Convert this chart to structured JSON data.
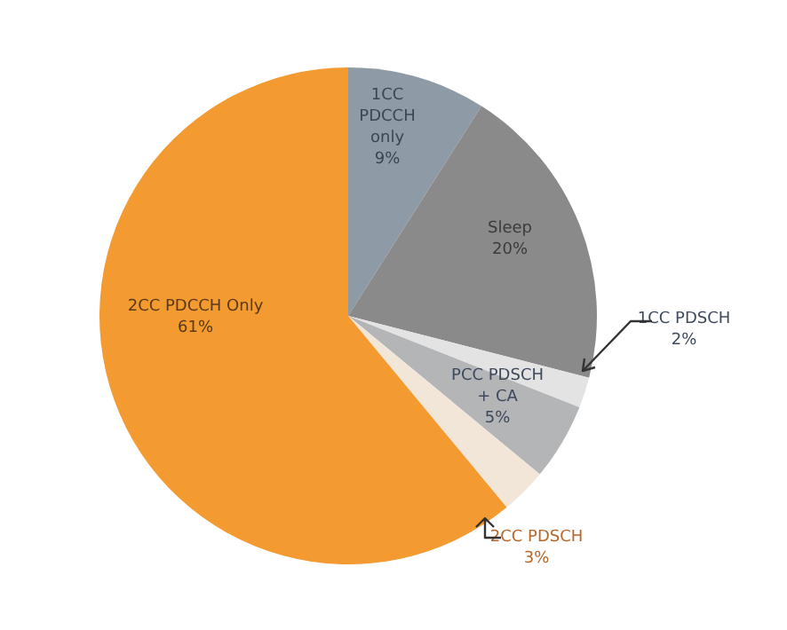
{
  "chart_data": {
    "type": "pie",
    "categories": [
      "1CC PDCCH only",
      "Sleep",
      "1CC PDSCH",
      "PCC PDSCH + CA",
      "2CC PDSCH",
      "2CC PDCCH Only"
    ],
    "values": [
      9,
      20,
      2,
      5,
      3,
      61
    ],
    "value_labels": [
      "9%",
      "20%",
      "2%",
      "5%",
      "3%",
      "61%"
    ],
    "colors": [
      "#8e9aa5",
      "#8a8a8a",
      "#e3e3e3",
      "#b3b5b7",
      "#f1e6d8",
      "#f39a31"
    ]
  }
}
